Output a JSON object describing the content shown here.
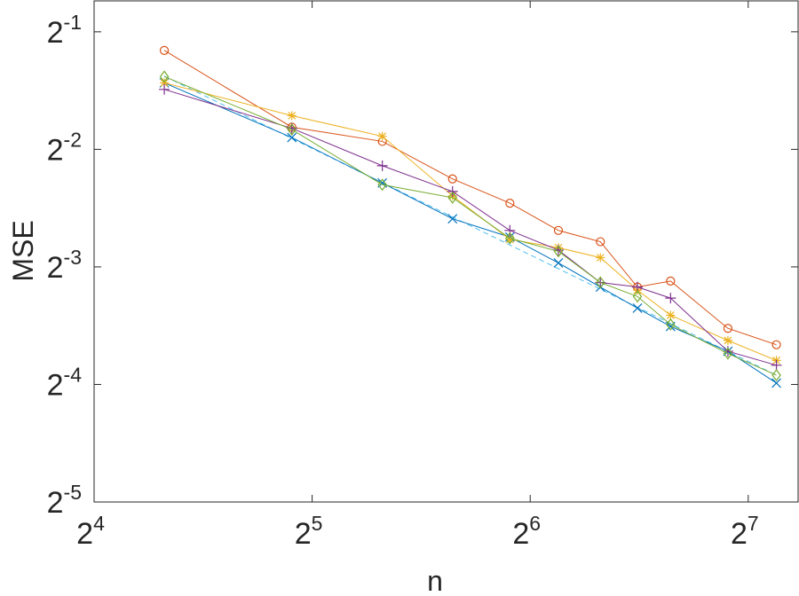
{
  "chart_data": {
    "type": "line",
    "title": "",
    "xlabel": "n",
    "ylabel": "MSE",
    "x_scale": "log2",
    "y_scale": "log2",
    "xlim": [
      16,
      150
    ],
    "ylim": [
      0.03125,
      0.6
    ],
    "x_ticks": [
      16,
      32,
      64,
      128
    ],
    "x_tick_labels": [
      {
        "base": "2",
        "exp": "4"
      },
      {
        "base": "2",
        "exp": "5"
      },
      {
        "base": "2",
        "exp": "6"
      },
      {
        "base": "2",
        "exp": "7"
      }
    ],
    "y_ticks": [
      0.03125,
      0.0625,
      0.125,
      0.25,
      0.5
    ],
    "y_tick_labels": [
      {
        "base": "2",
        "exp": "-5"
      },
      {
        "base": "2",
        "exp": "-4"
      },
      {
        "base": "2",
        "exp": "-3"
      },
      {
        "base": "2",
        "exp": "-2"
      },
      {
        "base": "2",
        "exp": "-1"
      }
    ],
    "grid": false,
    "x": [
      20,
      30,
      40,
      50,
      60,
      70,
      80,
      90,
      100,
      120,
      140
    ],
    "series": [
      {
        "color": "#0072BD",
        "marker": "x",
        "values": [
          0.37,
          0.268,
          0.205,
          0.166,
          0.149,
          0.128,
          0.111,
          0.098,
          0.088,
          0.076,
          0.063
        ]
      },
      {
        "color": "#D95319",
        "marker": "o",
        "values": [
          0.448,
          0.285,
          0.262,
          0.21,
          0.182,
          0.155,
          0.145,
          0.111,
          0.115,
          0.087,
          0.079
        ]
      },
      {
        "color": "#EDB120",
        "marker": "*",
        "values": [
          0.37,
          0.305,
          0.27,
          0.19,
          0.147,
          0.14,
          0.132,
          0.109,
          0.094,
          0.081,
          0.072
        ]
      },
      {
        "color": "#7E2F8E",
        "marker": "+",
        "values": [
          0.356,
          0.283,
          0.227,
          0.195,
          0.155,
          0.138,
          0.114,
          0.111,
          0.104,
          0.076,
          0.07
        ]
      },
      {
        "color": "#77AC30",
        "marker": "diamond",
        "values": [
          0.384,
          0.281,
          0.203,
          0.188,
          0.148,
          0.137,
          0.114,
          0.105,
          0.089,
          0.075,
          0.066
        ]
      }
    ],
    "reference_line": {
      "color": "#4DBEEE",
      "style": "dashed",
      "x": [
        20,
        140
      ],
      "values": [
        0.385,
        0.066
      ]
    }
  }
}
